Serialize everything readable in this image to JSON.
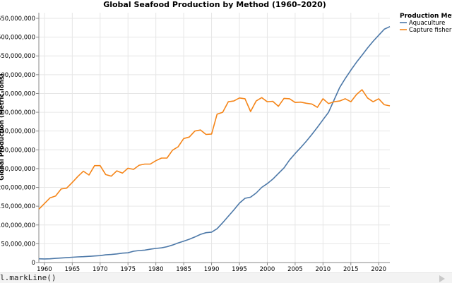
{
  "chart_data": {
    "type": "line",
    "title": "Global Seafood Production by Method (1960–2020)",
    "xlabel": "",
    "ylabel": "Global Production (Metric Tons)",
    "xlim": [
      1959,
      2022
    ],
    "ylim": [
      0,
      665000000
    ],
    "x_ticks": [
      1960,
      1965,
      1970,
      1975,
      1980,
      1985,
      1990,
      1995,
      2000,
      2005,
      2010,
      2015,
      2020
    ],
    "x_tick_labels": [
      "1960",
      "1965",
      "1970",
      "1975",
      "1980",
      "1985",
      "1990",
      "1995",
      "2000",
      "2005",
      "2010",
      "2015",
      "2020"
    ],
    "y_ticks": [
      0,
      50000000,
      100000000,
      150000000,
      200000000,
      250000000,
      300000000,
      350000000,
      400000000,
      450000000,
      500000000,
      550000000,
      600000000,
      650000000
    ],
    "y_tick_labels": [
      "0",
      "50,000,000",
      "100,000,000",
      "150,000,000",
      "200,000,000",
      "250,000,000",
      "300,000,000",
      "350,000,000",
      "400,000,000",
      "450,000,000",
      "500,000,000",
      "550,000,000",
      "600,000,000",
      "650,000,000"
    ],
    "grid": true,
    "legend": {
      "title": "Production Met",
      "placement": "top-right"
    },
    "x": [
      1959,
      1960,
      1961,
      1962,
      1963,
      1964,
      1965,
      1966,
      1967,
      1968,
      1969,
      1970,
      1971,
      1972,
      1973,
      1974,
      1975,
      1976,
      1977,
      1978,
      1979,
      1980,
      1981,
      1982,
      1983,
      1984,
      1985,
      1986,
      1987,
      1988,
      1989,
      1990,
      1991,
      1992,
      1993,
      1994,
      1995,
      1996,
      1997,
      1998,
      1999,
      2000,
      2001,
      2002,
      2003,
      2004,
      2005,
      2006,
      2007,
      2008,
      2009,
      2010,
      2011,
      2012,
      2013,
      2014,
      2015,
      2016,
      2017,
      2018,
      2019,
      2020,
      2021,
      2022
    ],
    "series": [
      {
        "name": "Aquaculture",
        "color": "#4c78a8",
        "values": [
          10000000,
          9500000,
          10000000,
          11000000,
          12000000,
          13000000,
          14000000,
          15000000,
          15500000,
          16500000,
          17500000,
          18500000,
          20500000,
          21500000,
          23000000,
          25000000,
          26000000,
          30000000,
          32000000,
          33000000,
          35500000,
          37500000,
          39000000,
          42000000,
          46500000,
          52000000,
          57000000,
          62000000,
          68000000,
          75000000,
          79500000,
          81000000,
          90000000,
          106000000,
          123000000,
          140000000,
          158000000,
          171000000,
          174000000,
          185000000,
          200000000,
          210000000,
          222000000,
          237000000,
          252000000,
          273000000,
          290000000,
          306000000,
          323000000,
          341000000,
          360000000,
          380000000,
          400000000,
          433000000,
          466000000,
          490000000,
          512000000,
          533000000,
          552000000,
          571000000,
          589000000,
          605000000,
          621000000,
          628000000
        ]
      },
      {
        "name": "Capture fisher",
        "color": "#f58518",
        "values": [
          142000000,
          157000000,
          172000000,
          177000000,
          196000000,
          198000000,
          213000000,
          229000000,
          243000000,
          233000000,
          258000000,
          258000000,
          234000000,
          230000000,
          244000000,
          238000000,
          251000000,
          248000000,
          259000000,
          262000000,
          262000000,
          271000000,
          278000000,
          278000000,
          299000000,
          308000000,
          330000000,
          334000000,
          350000000,
          353000000,
          341000000,
          342000000,
          395000000,
          400000000,
          428000000,
          430000000,
          438000000,
          436000000,
          402000000,
          430000000,
          439000000,
          428000000,
          429000000,
          416000000,
          437000000,
          436000000,
          426000000,
          427000000,
          424000000,
          422000000,
          413000000,
          436000000,
          423000000,
          428000000,
          430000000,
          436000000,
          428000000,
          447000000,
          460000000,
          438000000,
          428000000,
          436000000,
          420000000,
          417000000
        ]
      }
    ]
  },
  "code_strip": {
    "text": "l.markLine()",
    "run_icon": "run-triangle-icon"
  }
}
